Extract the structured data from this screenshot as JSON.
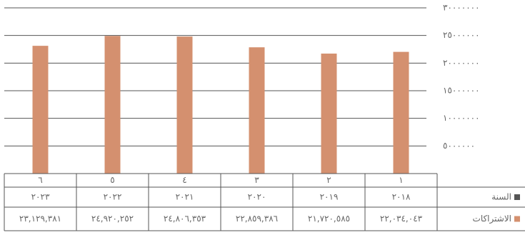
{
  "chart_data": {
    "type": "bar",
    "index": [
      "١",
      "٢",
      "٣",
      "٤",
      "٥",
      "٦"
    ],
    "category_name": "السنة",
    "category_color": "#555555",
    "categories": [
      "٢٠١٨",
      "٢٠١٩",
      "٢٠٢٠",
      "٢٠٢١",
      "٢٠٢٢",
      "٢٠٢٣"
    ],
    "series": [
      {
        "name": "الاشتراكات",
        "color": "#d4906f",
        "values": [
          22034043,
          21720585,
          22859386,
          24806353,
          24920252,
          23129381
        ],
        "value_labels": [
          "٢٢,٠٣٤,٠٤٣",
          "٢١,٧٢٠,٥٨٥",
          "٢٢,٨٥٩,٣٨٦",
          "٢٤,٨٠٦,٣٥٣",
          "٢٤,٩٢٠,٢٥٢",
          "٢٣,١٢٩,٣٨١"
        ]
      }
    ],
    "ylim": [
      0,
      30000000
    ],
    "yticks": [
      {
        "value": 5000000,
        "label": "٥٠٠٠٠٠٠"
      },
      {
        "value": 10000000,
        "label": "١٠٠٠٠٠٠٠"
      },
      {
        "value": 15000000,
        "label": "١٥٠٠٠٠٠٠"
      },
      {
        "value": 20000000,
        "label": "٢٠٠٠٠٠٠٠"
      },
      {
        "value": 25000000,
        "label": "٢٥٠٠٠٠٠٠"
      },
      {
        "value": 30000000,
        "label": "٣٠٠٠٠٠٠٠"
      }
    ],
    "grid": true
  }
}
